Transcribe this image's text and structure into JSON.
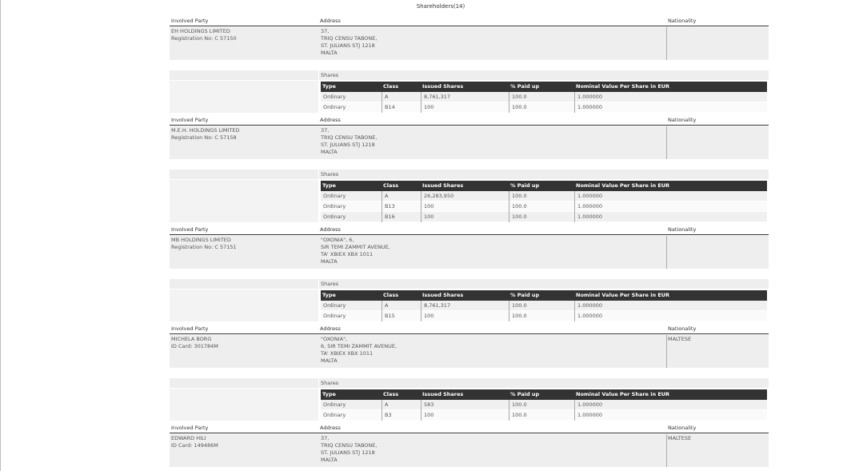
{
  "title": "Shareholders(14)",
  "labels": {
    "party": "Involved Party",
    "address": "Address",
    "nationality": "Nationality",
    "shares": "Shares"
  },
  "share_columns": [
    "Type",
    "Class",
    "Issued Shares",
    "% Paid up",
    "Nominal Value Per Share in EUR"
  ],
  "parties": [
    {
      "name": "EH HOLDINGS LIMITED",
      "id": "Registration No: C 57150",
      "address": [
        "37,",
        "TRIQ CENSU TABONE,",
        "ST. JULIANS STJ 1218",
        "MALTA"
      ],
      "shares": [
        [
          "Ordinary",
          "A",
          "8,761,317",
          "100.0",
          "1.000000"
        ],
        [
          "Ordinary",
          "B14",
          "100",
          "100.0",
          "1.000000"
        ]
      ]
    },
    {
      "name": "M.E.H. HOLDINGS LIMITED",
      "id": "Registration No: C 57158",
      "address": [
        "37,",
        "TRIQ CENSU TABONE,",
        "ST. JULIANS STJ 1218",
        "MALTA"
      ],
      "shares": [
        [
          "Ordinary",
          "A",
          "26,283,950",
          "100.0",
          "1.000000"
        ],
        [
          "Ordinary",
          "B13",
          "100",
          "100.0",
          "1.000000"
        ],
        [
          "Ordinary",
          "B16",
          "100",
          "100.0",
          "1.000000"
        ]
      ]
    },
    {
      "name": "MB HOLDINGS LIMITED",
      "id": "Registration No: C 57151",
      "address": [
        "\"OXONIA\", 6,",
        "SIR TEMI ZAMMIT AVENUE,",
        "TA' XBIEX XBX 1011",
        "MALTA"
      ],
      "shares": [
        [
          "Ordinary",
          "A",
          "8,761,317",
          "100.0",
          "1.000000"
        ],
        [
          "Ordinary",
          "B15",
          "100",
          "100.0",
          "1.000000"
        ]
      ]
    },
    {
      "name": "MICHELA BORG",
      "id": "ID Card: 301784M",
      "nationality": "MALTESE",
      "address": [
        "\"OXONIA\",",
        "6, SIR TEMI ZAMMIT AVENUE,",
        "TA' XBIEX XBX 1011",
        "MALTA"
      ],
      "shares": [
        [
          "Ordinary",
          "A",
          "583",
          "100.0",
          "1.000000"
        ],
        [
          "Ordinary",
          "B3",
          "100",
          "100.0",
          "1.000000"
        ]
      ]
    },
    {
      "name": "EDWARD HILI",
      "id": "ID Card: 149486M",
      "nationality": "MALTESE",
      "address": [
        "37,",
        "TRIQ CENSU TABONE,",
        "ST. JULIANS STJ 1218",
        "MALTA"
      ]
    }
  ]
}
